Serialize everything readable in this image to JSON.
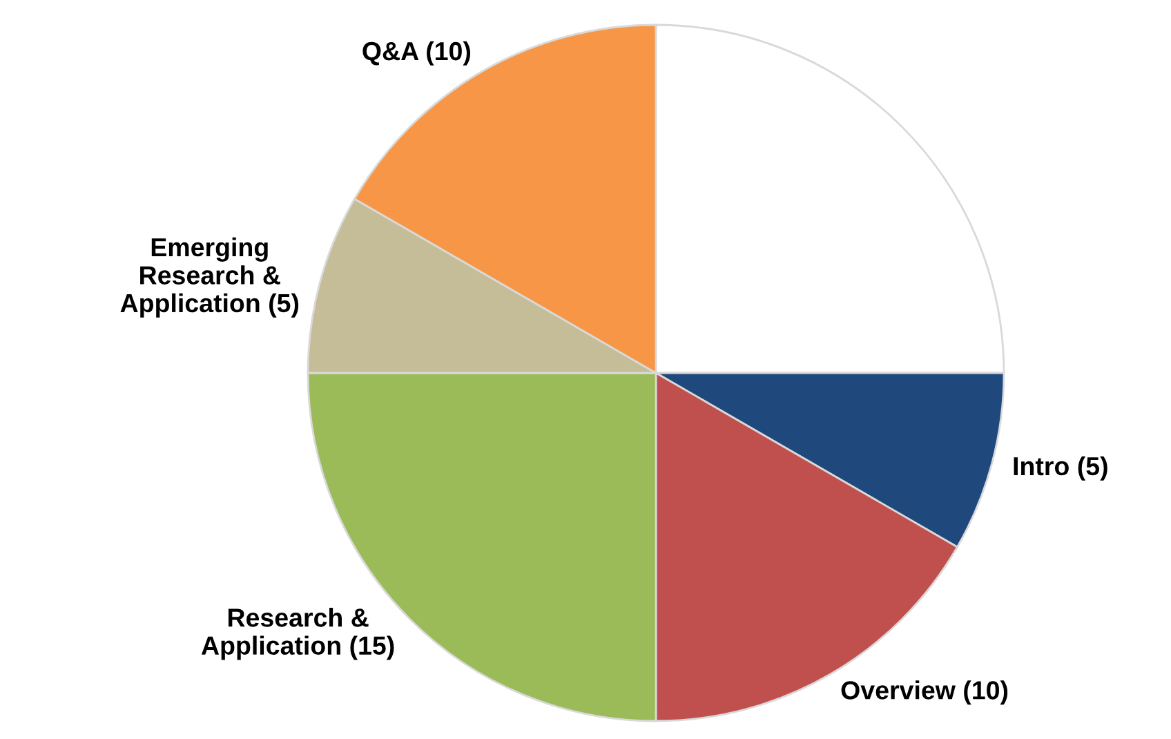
{
  "chart_data": {
    "type": "pie",
    "categories": [
      null,
      "Intro (5)",
      "Overview (10)",
      "Research &\nApplication (15)",
      "Emerging\nResearch &\nApplication (5)",
      "Q&A (10)"
    ],
    "values": [
      15,
      5,
      10,
      15,
      5,
      10
    ],
    "colors": [
      "#ffffff",
      "#1f497d",
      "#c0504d",
      "#9bbb59",
      "#c4bd97",
      "#f79646"
    ],
    "legend": false
  }
}
